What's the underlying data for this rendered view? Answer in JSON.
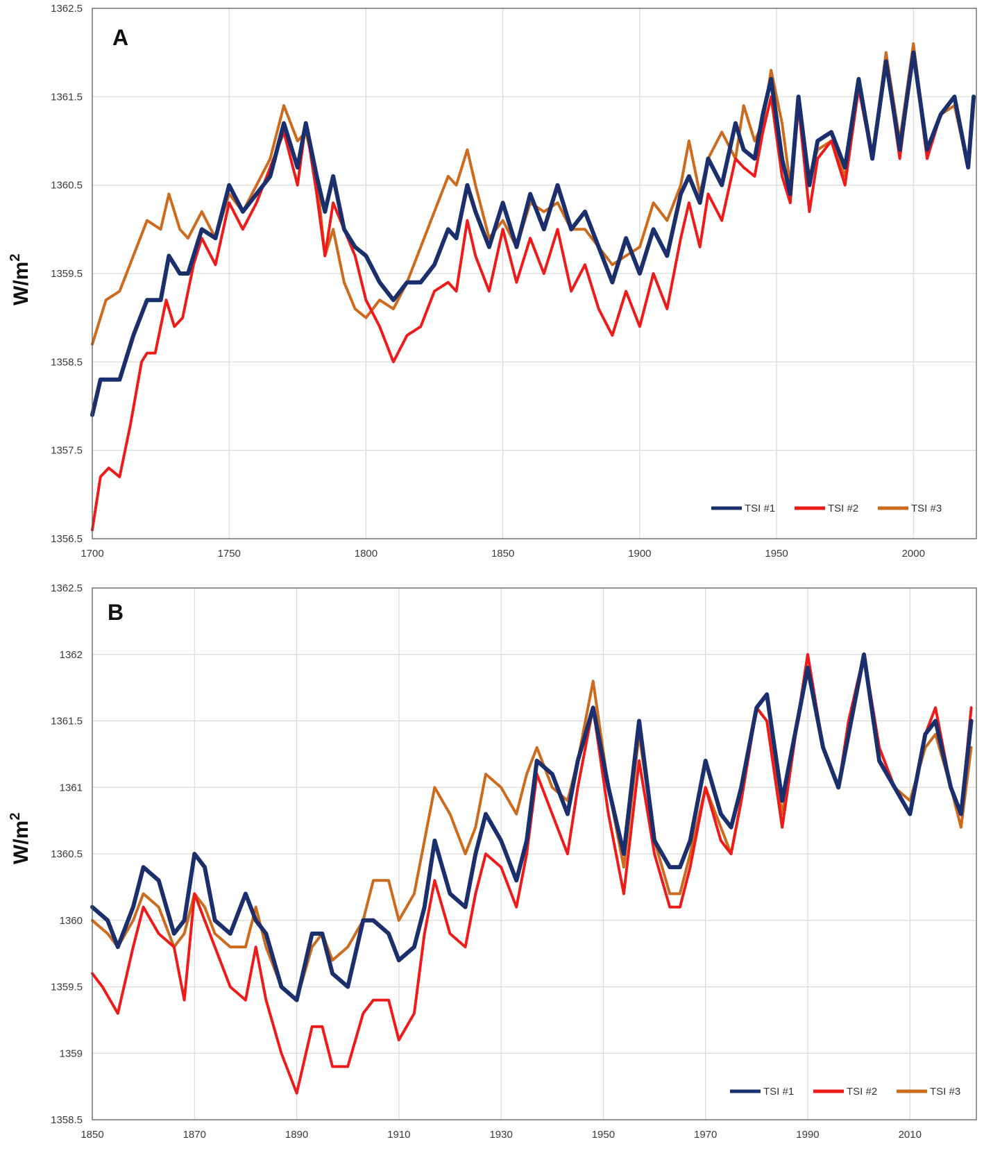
{
  "figure": {
    "y_axis_label": "W/m",
    "y_axis_label_sup": "2"
  },
  "colors": {
    "tsi1": "#1a2f6b",
    "tsi2": "#ee1b1b",
    "tsi3": "#cc6a1e",
    "grid": "#d9d9d9",
    "frame": "#555555"
  },
  "chart_data": [
    {
      "type": "line",
      "panel": "A",
      "xlabel": "",
      "ylabel": "W/m2",
      "xlim": [
        1700,
        2023
      ],
      "ylim": [
        1356.5,
        1362.5
      ],
      "xticks": [
        1700,
        1750,
        1800,
        1850,
        1900,
        1950,
        2000
      ],
      "yticks": [
        "1356.5",
        "1357.5",
        "1358.5",
        "1359.5",
        "1360.5",
        "1361.5",
        "1362.5"
      ],
      "grid": true,
      "legend_position": "bottom-right",
      "series": [
        {
          "name": "TSI #3",
          "color_key": "tsi3",
          "x": [
            1700,
            1705,
            1710,
            1715,
            1720,
            1725,
            1728,
            1732,
            1735,
            1740,
            1745,
            1750,
            1755,
            1760,
            1765,
            1770,
            1775,
            1778,
            1782,
            1785,
            1788,
            1792,
            1796,
            1800,
            1805,
            1810,
            1815,
            1820,
            1825,
            1830,
            1833,
            1837,
            1840,
            1845,
            1850,
            1855,
            1860,
            1865,
            1870,
            1875,
            1880,
            1885,
            1890,
            1895,
            1900,
            1905,
            1910,
            1915,
            1918,
            1922,
            1925,
            1930,
            1935,
            1938,
            1942,
            1945,
            1948,
            1952,
            1955,
            1958,
            1962,
            1965,
            1970,
            1975,
            1980,
            1985,
            1990,
            1995,
            2000,
            2005,
            2010,
            2015,
            2020,
            2022
          ],
          "y": [
            1358.7,
            1359.2,
            1359.3,
            1359.7,
            1360.1,
            1360.0,
            1360.4,
            1360.0,
            1359.9,
            1360.2,
            1359.9,
            1360.4,
            1360.2,
            1360.5,
            1360.8,
            1361.4,
            1361.0,
            1361.1,
            1360.6,
            1359.7,
            1360.0,
            1359.4,
            1359.1,
            1359.0,
            1359.2,
            1359.1,
            1359.4,
            1359.8,
            1360.2,
            1360.6,
            1360.5,
            1360.9,
            1360.5,
            1359.9,
            1360.1,
            1359.8,
            1360.3,
            1360.2,
            1360.3,
            1360.0,
            1360.0,
            1359.8,
            1359.6,
            1359.7,
            1359.8,
            1360.3,
            1360.1,
            1360.5,
            1361.0,
            1360.4,
            1360.8,
            1361.1,
            1360.8,
            1361.4,
            1361.0,
            1361.2,
            1361.8,
            1361.2,
            1360.5,
            1361.4,
            1360.6,
            1360.9,
            1361.0,
            1360.6,
            1361.6,
            1360.8,
            1362.0,
            1361.0,
            1362.1,
            1360.9,
            1361.3,
            1361.4,
            1360.7,
            1361.5
          ]
        },
        {
          "name": "TSI #2",
          "color_key": "tsi2",
          "x": [
            1700,
            1703,
            1706,
            1710,
            1714,
            1718,
            1720,
            1723,
            1727,
            1730,
            1733,
            1737,
            1740,
            1745,
            1750,
            1755,
            1760,
            1765,
            1770,
            1775,
            1778,
            1782,
            1785,
            1788,
            1792,
            1796,
            1800,
            1805,
            1810,
            1815,
            1820,
            1825,
            1830,
            1833,
            1837,
            1840,
            1845,
            1850,
            1855,
            1860,
            1865,
            1870,
            1875,
            1880,
            1885,
            1890,
            1895,
            1900,
            1905,
            1910,
            1915,
            1918,
            1922,
            1925,
            1930,
            1935,
            1938,
            1942,
            1945,
            1948,
            1952,
            1955,
            1958,
            1962,
            1965,
            1970,
            1975,
            1980,
            1985,
            1990,
            1995,
            2000,
            2005,
            2010,
            2015,
            2020,
            2022
          ],
          "y": [
            1356.6,
            1357.2,
            1357.3,
            1357.2,
            1357.8,
            1358.5,
            1358.6,
            1358.6,
            1359.2,
            1358.9,
            1359.0,
            1359.6,
            1359.9,
            1359.6,
            1360.3,
            1360.0,
            1360.3,
            1360.7,
            1361.1,
            1360.5,
            1361.2,
            1360.4,
            1359.7,
            1360.3,
            1360.0,
            1359.7,
            1359.2,
            1358.9,
            1358.5,
            1358.8,
            1358.9,
            1359.3,
            1359.4,
            1359.3,
            1360.1,
            1359.7,
            1359.3,
            1360.0,
            1359.4,
            1359.9,
            1359.5,
            1360.0,
            1359.3,
            1359.6,
            1359.1,
            1358.8,
            1359.3,
            1358.9,
            1359.5,
            1359.1,
            1359.9,
            1360.3,
            1359.8,
            1360.4,
            1360.1,
            1360.8,
            1360.7,
            1360.6,
            1361.1,
            1361.5,
            1360.6,
            1360.3,
            1361.4,
            1360.2,
            1360.8,
            1361.0,
            1360.5,
            1361.6,
            1360.8,
            1361.9,
            1360.8,
            1362.0,
            1360.8,
            1361.3,
            1361.5,
            1360.7,
            1361.5
          ]
        },
        {
          "name": "TSI #1",
          "color_key": "tsi1",
          "x": [
            1700,
            1703,
            1706,
            1710,
            1715,
            1720,
            1725,
            1728,
            1732,
            1735,
            1740,
            1745,
            1750,
            1755,
            1760,
            1765,
            1770,
            1775,
            1778,
            1782,
            1785,
            1788,
            1792,
            1796,
            1800,
            1805,
            1810,
            1815,
            1820,
            1825,
            1830,
            1833,
            1837,
            1840,
            1845,
            1850,
            1855,
            1860,
            1865,
            1870,
            1875,
            1880,
            1885,
            1890,
            1895,
            1900,
            1905,
            1910,
            1915,
            1918,
            1922,
            1925,
            1930,
            1935,
            1938,
            1942,
            1945,
            1948,
            1952,
            1955,
            1958,
            1962,
            1965,
            1970,
            1975,
            1980,
            1985,
            1990,
            1995,
            2000,
            2005,
            2010,
            2015,
            2020,
            2022
          ],
          "y": [
            1357.9,
            1358.3,
            1358.3,
            1358.3,
            1358.8,
            1359.2,
            1359.2,
            1359.7,
            1359.5,
            1359.5,
            1360.0,
            1359.9,
            1360.5,
            1360.2,
            1360.4,
            1360.6,
            1361.2,
            1360.7,
            1361.2,
            1360.6,
            1360.2,
            1360.6,
            1360.0,
            1359.8,
            1359.7,
            1359.4,
            1359.2,
            1359.4,
            1359.4,
            1359.6,
            1360.0,
            1359.9,
            1360.5,
            1360.2,
            1359.8,
            1360.3,
            1359.8,
            1360.4,
            1360.0,
            1360.5,
            1360.0,
            1360.2,
            1359.8,
            1359.4,
            1359.9,
            1359.5,
            1360.0,
            1359.7,
            1360.4,
            1360.6,
            1360.3,
            1360.8,
            1360.5,
            1361.2,
            1360.9,
            1360.8,
            1361.3,
            1361.7,
            1360.8,
            1360.4,
            1361.5,
            1360.5,
            1361.0,
            1361.1,
            1360.7,
            1361.7,
            1360.8,
            1361.9,
            1360.9,
            1362.0,
            1360.9,
            1361.3,
            1361.5,
            1360.7,
            1361.5
          ]
        }
      ]
    },
    {
      "type": "line",
      "panel": "B",
      "xlabel": "",
      "ylabel": "W/m2",
      "xlim": [
        1850,
        2023
      ],
      "ylim": [
        1358.5,
        1362.5
      ],
      "xticks": [
        1850,
        1870,
        1890,
        1910,
        1930,
        1950,
        1970,
        1990,
        2010
      ],
      "yticks": [
        "1358.5",
        "1359",
        "1359.5",
        "1360",
        "1360.5",
        "1361",
        "1361.5",
        "1362",
        "1362.5"
      ],
      "grid": true,
      "legend_position": "bottom-right",
      "series": [
        {
          "name": "TSI #3",
          "color_key": "tsi3",
          "x": [
            1850,
            1853,
            1855,
            1858,
            1860,
            1863,
            1866,
            1868,
            1870,
            1872,
            1874,
            1877,
            1880,
            1882,
            1884,
            1887,
            1890,
            1893,
            1895,
            1897,
            1900,
            1903,
            1905,
            1908,
            1910,
            1913,
            1915,
            1917,
            1920,
            1923,
            1925,
            1927,
            1930,
            1933,
            1935,
            1937,
            1940,
            1943,
            1945,
            1948,
            1951,
            1954,
            1957,
            1960,
            1963,
            1965,
            1967,
            1970,
            1973,
            1975,
            1977,
            1980,
            1982,
            1985,
            1988,
            1990,
            1993,
            1996,
            1998,
            2001,
            2004,
            2007,
            2010,
            2013,
            2015,
            2018,
            2020,
            2022
          ],
          "y": [
            1360.0,
            1359.9,
            1359.8,
            1360.0,
            1360.2,
            1360.1,
            1359.8,
            1359.9,
            1360.2,
            1360.1,
            1359.9,
            1359.8,
            1359.8,
            1360.1,
            1359.8,
            1359.5,
            1359.4,
            1359.8,
            1359.9,
            1359.7,
            1359.8,
            1360.0,
            1360.3,
            1360.3,
            1360.0,
            1360.2,
            1360.6,
            1361.0,
            1360.8,
            1360.5,
            1360.7,
            1361.1,
            1361.0,
            1360.8,
            1361.1,
            1361.3,
            1361.0,
            1360.9,
            1361.2,
            1361.8,
            1361.0,
            1360.4,
            1361.4,
            1360.6,
            1360.2,
            1360.2,
            1360.5,
            1361.0,
            1360.7,
            1360.5,
            1360.9,
            1361.6,
            1361.5,
            1360.8,
            1361.5,
            1362.0,
            1361.3,
            1361.0,
            1361.5,
            1362.0,
            1361.3,
            1361.0,
            1360.9,
            1361.3,
            1361.4,
            1361.0,
            1360.7,
            1361.3
          ]
        },
        {
          "name": "TSI #2",
          "color_key": "tsi2",
          "x": [
            1850,
            1852,
            1855,
            1858,
            1860,
            1863,
            1866,
            1868,
            1870,
            1872,
            1874,
            1877,
            1880,
            1882,
            1884,
            1887,
            1890,
            1893,
            1895,
            1897,
            1900,
            1903,
            1905,
            1908,
            1910,
            1913,
            1915,
            1917,
            1920,
            1923,
            1925,
            1927,
            1930,
            1933,
            1935,
            1937,
            1940,
            1943,
            1945,
            1948,
            1951,
            1954,
            1957,
            1960,
            1963,
            1965,
            1967,
            1970,
            1973,
            1975,
            1977,
            1980,
            1982,
            1985,
            1988,
            1990,
            1993,
            1996,
            1998,
            2001,
            2004,
            2007,
            2010,
            2013,
            2015,
            2018,
            2020,
            2022
          ],
          "y": [
            1359.6,
            1359.5,
            1359.3,
            1359.8,
            1360.1,
            1359.9,
            1359.8,
            1359.4,
            1360.2,
            1360.0,
            1359.8,
            1359.5,
            1359.4,
            1359.8,
            1359.4,
            1359.0,
            1358.7,
            1359.2,
            1359.2,
            1358.9,
            1358.9,
            1359.3,
            1359.4,
            1359.4,
            1359.1,
            1359.3,
            1359.9,
            1360.3,
            1359.9,
            1359.8,
            1360.2,
            1360.5,
            1360.4,
            1360.1,
            1360.5,
            1361.1,
            1360.8,
            1360.5,
            1361.0,
            1361.6,
            1360.8,
            1360.2,
            1361.2,
            1360.5,
            1360.1,
            1360.1,
            1360.4,
            1361.0,
            1360.6,
            1360.5,
            1360.9,
            1361.6,
            1361.5,
            1360.7,
            1361.5,
            1362.0,
            1361.3,
            1361.0,
            1361.5,
            1362.0,
            1361.3,
            1361.0,
            1360.8,
            1361.4,
            1361.6,
            1361.0,
            1360.8,
            1361.6
          ]
        },
        {
          "name": "TSI #1",
          "color_key": "tsi1",
          "x": [
            1850,
            1853,
            1855,
            1858,
            1860,
            1863,
            1866,
            1868,
            1870,
            1872,
            1874,
            1877,
            1880,
            1882,
            1884,
            1887,
            1890,
            1893,
            1895,
            1897,
            1900,
            1903,
            1905,
            1908,
            1910,
            1913,
            1915,
            1917,
            1920,
            1923,
            1925,
            1927,
            1930,
            1933,
            1935,
            1937,
            1940,
            1943,
            1945,
            1948,
            1951,
            1954,
            1957,
            1960,
            1963,
            1965,
            1967,
            1970,
            1973,
            1975,
            1977,
            1980,
            1982,
            1985,
            1988,
            1990,
            1993,
            1996,
            1998,
            2001,
            2004,
            2007,
            2010,
            2013,
            2015,
            2018,
            2020,
            2022
          ],
          "y": [
            1360.1,
            1360.0,
            1359.8,
            1360.1,
            1360.4,
            1360.3,
            1359.9,
            1360.0,
            1360.5,
            1360.4,
            1360.0,
            1359.9,
            1360.2,
            1360.0,
            1359.9,
            1359.5,
            1359.4,
            1359.9,
            1359.9,
            1359.6,
            1359.5,
            1360.0,
            1360.0,
            1359.9,
            1359.7,
            1359.8,
            1360.1,
            1360.6,
            1360.2,
            1360.1,
            1360.5,
            1360.8,
            1360.6,
            1360.3,
            1360.6,
            1361.2,
            1361.1,
            1360.8,
            1361.2,
            1361.6,
            1361.0,
            1360.5,
            1361.5,
            1360.6,
            1360.4,
            1360.4,
            1360.6,
            1361.2,
            1360.8,
            1360.7,
            1361.0,
            1361.6,
            1361.7,
            1360.9,
            1361.5,
            1361.9,
            1361.3,
            1361.0,
            1361.4,
            1362.0,
            1361.2,
            1361.0,
            1360.8,
            1361.4,
            1361.5,
            1361.0,
            1360.8,
            1361.5
          ]
        }
      ]
    }
  ]
}
